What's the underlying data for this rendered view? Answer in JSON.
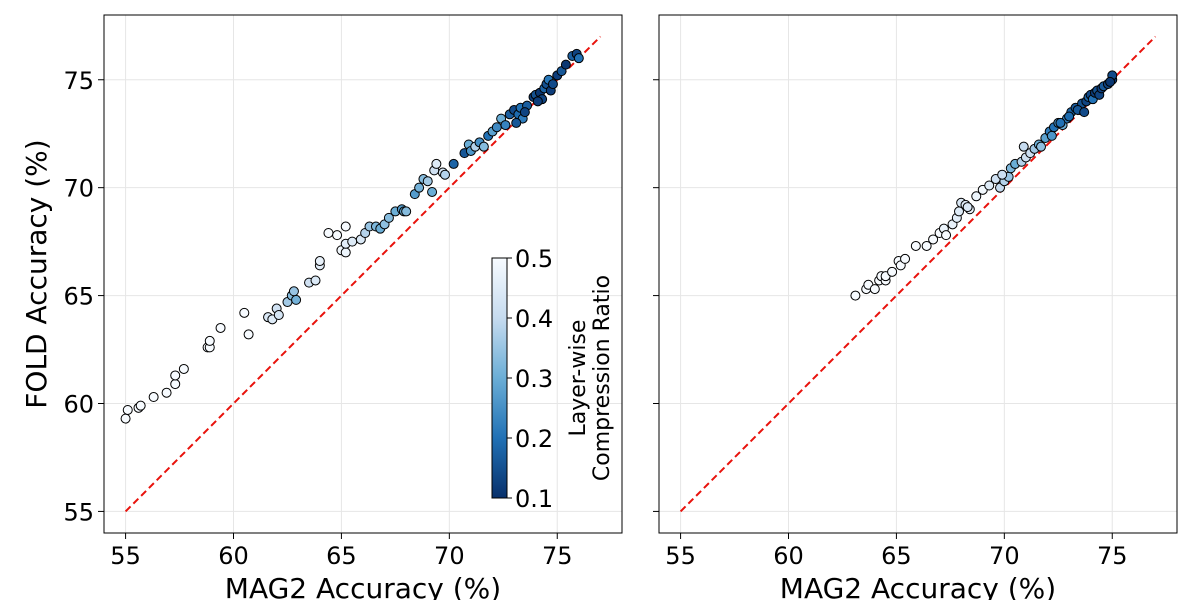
{
  "chart_data": [
    {
      "type": "scatter",
      "xlabel": "MAG2 Accuracy (%)",
      "ylabel": "FOLD Accuracy (%)",
      "xlim": [
        54,
        78
      ],
      "ylim": [
        54,
        78
      ],
      "xticks": [
        55,
        60,
        65,
        70,
        75
      ],
      "yticks": [
        55,
        60,
        65,
        70,
        75
      ],
      "grid": true,
      "reference_line": {
        "style": "dashed",
        "color": "#e8120c",
        "from": [
          55,
          55
        ],
        "to": [
          77,
          77
        ]
      },
      "colorbar": {
        "label_line1": "Layer-wise",
        "label_line2": "Compression Ratio",
        "range": [
          0.1,
          0.5
        ],
        "ticks": [
          0.1,
          0.2,
          0.3,
          0.4,
          0.5
        ],
        "colormap": "Blues_r"
      },
      "points": [
        [
          55.0,
          59.3,
          0.5
        ],
        [
          55.1,
          59.7,
          0.5
        ],
        [
          55.6,
          59.8,
          0.5
        ],
        [
          55.7,
          59.9,
          0.5
        ],
        [
          56.3,
          60.3,
          0.5
        ],
        [
          56.9,
          60.5,
          0.5
        ],
        [
          57.3,
          60.9,
          0.5
        ],
        [
          57.3,
          61.3,
          0.5
        ],
        [
          57.7,
          61.6,
          0.5
        ],
        [
          58.8,
          62.6,
          0.5
        ],
        [
          58.9,
          62.6,
          0.5
        ],
        [
          58.9,
          62.9,
          0.5
        ],
        [
          59.4,
          63.5,
          0.5
        ],
        [
          60.5,
          64.2,
          0.5
        ],
        [
          60.7,
          63.2,
          0.5
        ],
        [
          61.6,
          64.0,
          0.44
        ],
        [
          61.8,
          63.9,
          0.45
        ],
        [
          62.0,
          64.4,
          0.42
        ],
        [
          62.1,
          64.1,
          0.43
        ],
        [
          62.5,
          64.7,
          0.36
        ],
        [
          62.7,
          65.0,
          0.33
        ],
        [
          62.9,
          64.8,
          0.31
        ],
        [
          62.8,
          65.2,
          0.35
        ],
        [
          63.5,
          65.6,
          0.42
        ],
        [
          63.8,
          65.7,
          0.44
        ],
        [
          64.0,
          66.4,
          0.46
        ],
        [
          64.0,
          66.6,
          0.47
        ],
        [
          64.4,
          67.9,
          0.5
        ],
        [
          64.8,
          67.8,
          0.5
        ],
        [
          65.2,
          68.2,
          0.5
        ],
        [
          65.0,
          67.1,
          0.49
        ],
        [
          65.2,
          67.0,
          0.48
        ],
        [
          65.2,
          67.4,
          0.46
        ],
        [
          65.5,
          67.5,
          0.45
        ],
        [
          65.9,
          67.6,
          0.44
        ],
        [
          66.1,
          67.9,
          0.38
        ],
        [
          66.3,
          68.2,
          0.35
        ],
        [
          66.6,
          68.2,
          0.32
        ],
        [
          66.8,
          68.1,
          0.3
        ],
        [
          67.0,
          68.3,
          0.34
        ],
        [
          67.2,
          68.6,
          0.33
        ],
        [
          67.5,
          68.9,
          0.3
        ],
        [
          67.8,
          69.0,
          0.27
        ],
        [
          67.9,
          68.9,
          0.3
        ],
        [
          68.0,
          68.9,
          0.33
        ],
        [
          68.4,
          69.7,
          0.27
        ],
        [
          68.6,
          70.0,
          0.31
        ],
        [
          68.8,
          70.4,
          0.33
        ],
        [
          69.0,
          70.3,
          0.36
        ],
        [
          69.2,
          69.8,
          0.3
        ],
        [
          69.3,
          70.8,
          0.42
        ],
        [
          69.4,
          71.1,
          0.45
        ],
        [
          69.7,
          70.7,
          0.43
        ],
        [
          69.8,
          70.6,
          0.38
        ],
        [
          70.2,
          71.1,
          0.18
        ],
        [
          70.7,
          71.6,
          0.16
        ],
        [
          70.9,
          72.0,
          0.3
        ],
        [
          71.0,
          71.7,
          0.26
        ],
        [
          71.2,
          71.9,
          0.38
        ],
        [
          71.4,
          72.1,
          0.25
        ],
        [
          71.6,
          71.9,
          0.33
        ],
        [
          71.8,
          72.4,
          0.2
        ],
        [
          72.0,
          72.6,
          0.28
        ],
        [
          72.2,
          72.8,
          0.24
        ],
        [
          72.4,
          73.2,
          0.3
        ],
        [
          72.6,
          72.9,
          0.23
        ],
        [
          72.8,
          73.4,
          0.17
        ],
        [
          73.0,
          73.6,
          0.14
        ],
        [
          73.2,
          73.4,
          0.19
        ],
        [
          73.3,
          73.7,
          0.2
        ],
        [
          73.4,
          73.2,
          0.22
        ],
        [
          73.6,
          73.8,
          0.17
        ],
        [
          73.9,
          74.2,
          0.12
        ],
        [
          74.0,
          74.3,
          0.15
        ],
        [
          74.2,
          74.4,
          0.11
        ],
        [
          74.3,
          74.1,
          0.13
        ],
        [
          74.4,
          74.6,
          0.18
        ],
        [
          74.5,
          74.8,
          0.15
        ],
        [
          74.6,
          75.0,
          0.21
        ],
        [
          74.7,
          74.5,
          0.12
        ],
        [
          74.8,
          74.8,
          0.14
        ],
        [
          75.0,
          75.2,
          0.12
        ],
        [
          75.2,
          75.4,
          0.16
        ],
        [
          75.4,
          75.7,
          0.11
        ],
        [
          75.7,
          76.1,
          0.17
        ],
        [
          75.9,
          76.2,
          0.13
        ],
        [
          76.0,
          76.0,
          0.2
        ],
        [
          73.1,
          73.0,
          0.16
        ],
        [
          73.5,
          73.5,
          0.13
        ],
        [
          74.1,
          74.0,
          0.12
        ]
      ]
    },
    {
      "type": "scatter",
      "xlabel": "MAG2 Accuracy (%)",
      "ylabel": "",
      "xlim": [
        54,
        78
      ],
      "ylim": [
        54,
        78
      ],
      "xticks": [
        55,
        60,
        65,
        70,
        75
      ],
      "yticks": [
        55,
        60,
        65,
        70,
        75
      ],
      "ytick_labels_shown": false,
      "grid": true,
      "reference_line": {
        "style": "dashed",
        "color": "#e8120c",
        "from": [
          55,
          55
        ],
        "to": [
          77,
          77
        ]
      },
      "points": [
        [
          63.1,
          65.0,
          0.5
        ],
        [
          63.6,
          65.3,
          0.5
        ],
        [
          63.7,
          65.5,
          0.5
        ],
        [
          64.0,
          65.3,
          0.5
        ],
        [
          64.2,
          65.7,
          0.5
        ],
        [
          64.3,
          65.9,
          0.5
        ],
        [
          64.5,
          65.7,
          0.5
        ],
        [
          64.5,
          65.9,
          0.5
        ],
        [
          64.8,
          66.1,
          0.5
        ],
        [
          65.1,
          66.6,
          0.5
        ],
        [
          65.2,
          66.4,
          0.5
        ],
        [
          65.4,
          66.7,
          0.5
        ],
        [
          65.9,
          67.3,
          0.5
        ],
        [
          66.4,
          67.3,
          0.5
        ],
        [
          66.7,
          67.6,
          0.5
        ],
        [
          67.0,
          67.9,
          0.5
        ],
        [
          67.2,
          68.1,
          0.48
        ],
        [
          67.3,
          67.8,
          0.5
        ],
        [
          67.6,
          68.3,
          0.47
        ],
        [
          67.8,
          68.6,
          0.46
        ],
        [
          67.9,
          68.9,
          0.45
        ],
        [
          68.0,
          69.3,
          0.44
        ],
        [
          68.2,
          69.2,
          0.45
        ],
        [
          68.4,
          69.0,
          0.47
        ],
        [
          68.7,
          69.6,
          0.48
        ],
        [
          69.0,
          69.9,
          0.49
        ],
        [
          69.3,
          70.1,
          0.45
        ],
        [
          69.6,
          70.4,
          0.42
        ],
        [
          69.8,
          70.0,
          0.4
        ],
        [
          70.0,
          70.3,
          0.38
        ],
        [
          70.2,
          70.5,
          0.35
        ],
        [
          70.3,
          70.9,
          0.32
        ],
        [
          70.5,
          71.1,
          0.3
        ],
        [
          70.8,
          71.2,
          0.38
        ],
        [
          71.0,
          71.4,
          0.42
        ],
        [
          71.2,
          71.6,
          0.41
        ],
        [
          71.4,
          71.8,
          0.36
        ],
        [
          71.6,
          72.0,
          0.3
        ],
        [
          71.9,
          72.3,
          0.28
        ],
        [
          72.1,
          72.6,
          0.22
        ],
        [
          72.3,
          72.8,
          0.2
        ],
        [
          72.5,
          73.0,
          0.25
        ],
        [
          72.7,
          72.9,
          0.3
        ],
        [
          72.9,
          73.2,
          0.22
        ],
        [
          73.1,
          73.5,
          0.18
        ],
        [
          73.3,
          73.7,
          0.16
        ],
        [
          73.5,
          73.6,
          0.2
        ],
        [
          73.6,
          73.9,
          0.15
        ],
        [
          73.8,
          74.0,
          0.13
        ],
        [
          73.9,
          74.2,
          0.18
        ],
        [
          74.0,
          74.3,
          0.14
        ],
        [
          74.1,
          74.1,
          0.2
        ],
        [
          74.2,
          74.4,
          0.12
        ],
        [
          74.3,
          74.5,
          0.15
        ],
        [
          74.4,
          74.3,
          0.13
        ],
        [
          74.5,
          74.6,
          0.12
        ],
        [
          74.6,
          74.7,
          0.16
        ],
        [
          74.8,
          74.8,
          0.13
        ],
        [
          75.0,
          75.0,
          0.12
        ],
        [
          75.0,
          75.2,
          0.14
        ],
        [
          72.2,
          72.4,
          0.26
        ],
        [
          72.6,
          73.0,
          0.2
        ],
        [
          73.0,
          73.3,
          0.19
        ],
        [
          73.4,
          73.6,
          0.16
        ],
        [
          71.7,
          71.9,
          0.34
        ],
        [
          70.9,
          71.9,
          0.4
        ],
        [
          69.9,
          70.6,
          0.41
        ],
        [
          68.3,
          69.1,
          0.44
        ],
        [
          73.7,
          73.5,
          0.14
        ],
        [
          74.9,
          74.9,
          0.11
        ]
      ]
    }
  ]
}
